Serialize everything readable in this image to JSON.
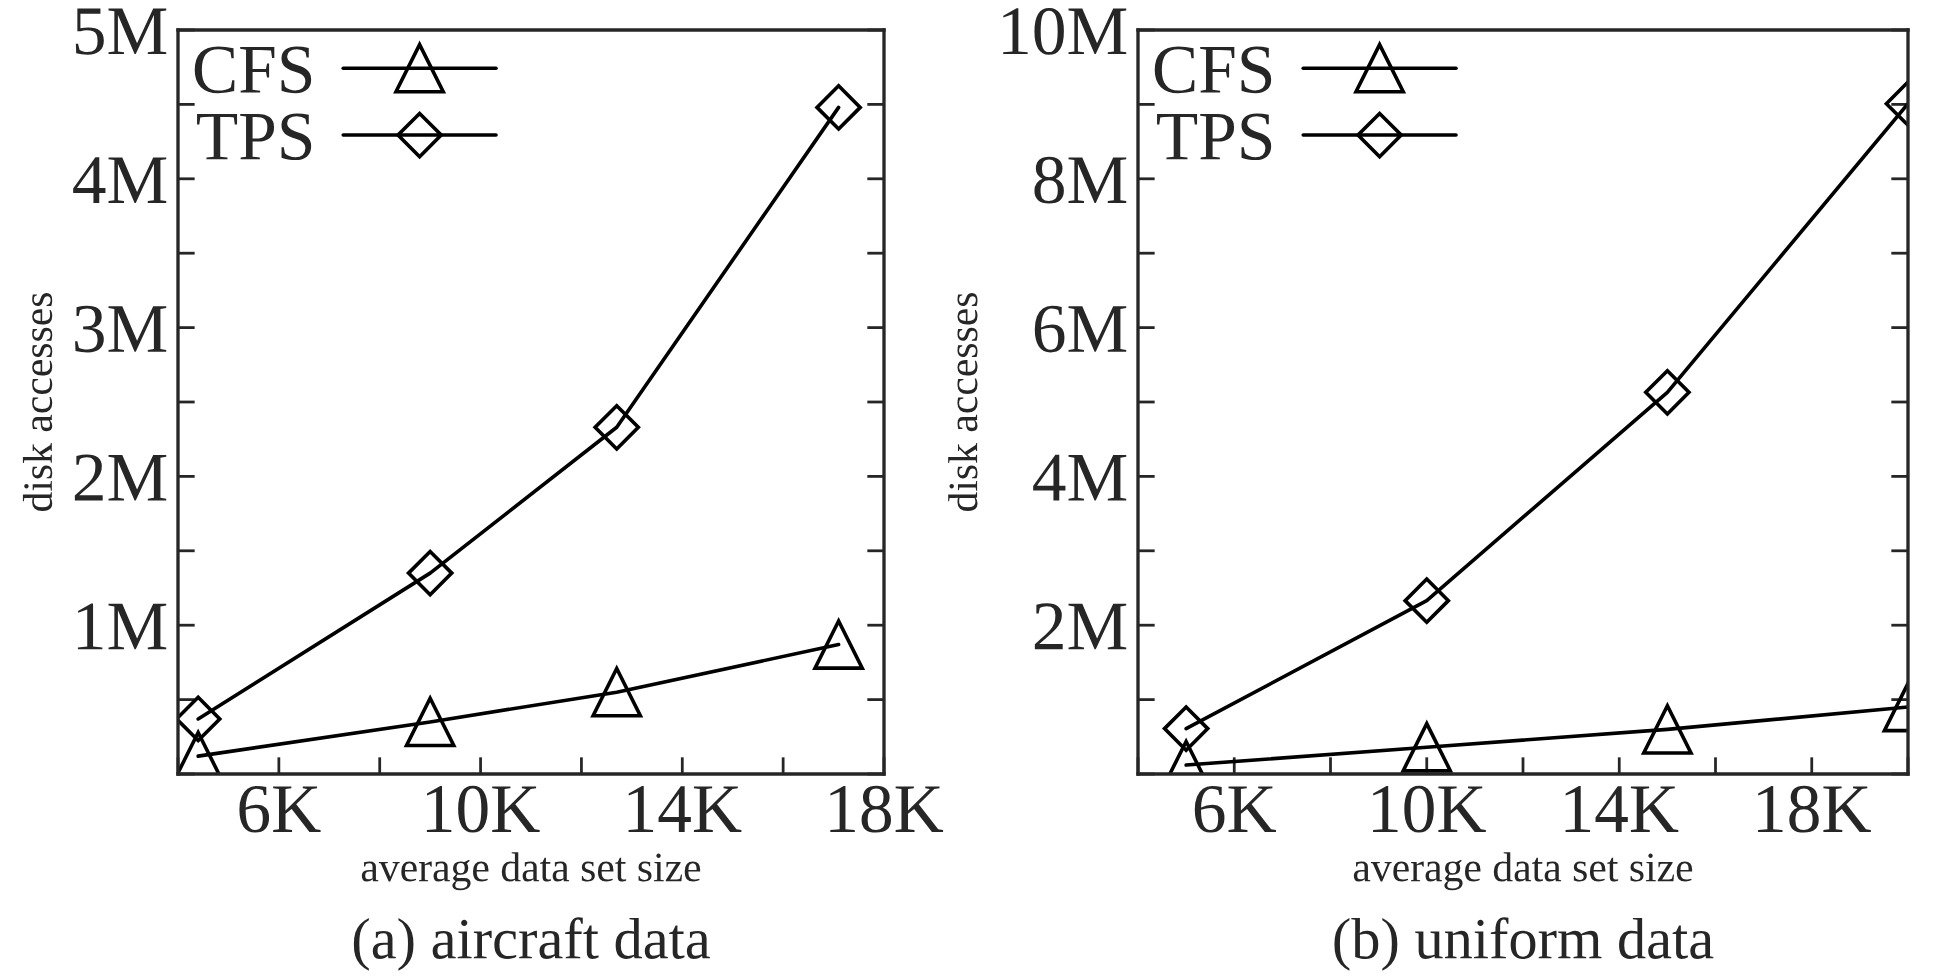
{
  "chart_data": [
    {
      "type": "line",
      "title": "(a) aircraft data",
      "xlabel": "average data set size",
      "ylabel": "disk accesses",
      "xlim": [
        4000,
        18000
      ],
      "xticks": [
        {
          "value": 4000,
          "label": null
        },
        {
          "value": 6000,
          "label": "6K"
        },
        {
          "value": 8000,
          "label": null
        },
        {
          "value": 10000,
          "label": "10K"
        },
        {
          "value": 12000,
          "label": null
        },
        {
          "value": 14000,
          "label": "14K"
        },
        {
          "value": 16000,
          "label": null
        },
        {
          "value": 18000,
          "label": "18K"
        }
      ],
      "ylim": [
        0,
        5000000
      ],
      "yticks": [
        {
          "value": 0,
          "label": null
        },
        {
          "value": 500000,
          "label": null
        },
        {
          "value": 1000000,
          "label": "1M"
        },
        {
          "value": 1500000,
          "label": null
        },
        {
          "value": 2000000,
          "label": "2M"
        },
        {
          "value": 2500000,
          "label": null
        },
        {
          "value": 3000000,
          "label": "3M"
        },
        {
          "value": 3500000,
          "label": null
        },
        {
          "value": 4000000,
          "label": "4M"
        },
        {
          "value": 4500000,
          "label": null
        },
        {
          "value": 5000000,
          "label": "5M"
        }
      ],
      "legend": "top left",
      "grid": false,
      "series": [
        {
          "name": "CFS",
          "color": "#000000",
          "marker": "triangle",
          "x": [
            4400,
            9000,
            12700,
            17100
          ],
          "values": [
            120000,
            350000,
            550000,
            870000
          ]
        },
        {
          "name": "TPS",
          "color": "#000000",
          "marker": "diamond",
          "x": [
            4400,
            9000,
            12700,
            17100
          ],
          "values": [
            370000,
            1350000,
            2330000,
            4480000
          ]
        }
      ]
    },
    {
      "type": "line",
      "title": "(b) uniform data",
      "xlabel": "average data set size",
      "ylabel": "disk accesses",
      "xlim": [
        4000,
        20000
      ],
      "xticks": [
        {
          "value": 4000,
          "label": null
        },
        {
          "value": 6000,
          "label": "6K"
        },
        {
          "value": 8000,
          "label": null
        },
        {
          "value": 10000,
          "label": "10K"
        },
        {
          "value": 12000,
          "label": null
        },
        {
          "value": 14000,
          "label": "14K"
        },
        {
          "value": 16000,
          "label": null
        },
        {
          "value": 18000,
          "label": "18K"
        },
        {
          "value": 20000,
          "label": null
        }
      ],
      "ylim": [
        0,
        10000000
      ],
      "yticks": [
        {
          "value": 0,
          "label": null
        },
        {
          "value": 1000000,
          "label": null
        },
        {
          "value": 2000000,
          "label": "2M"
        },
        {
          "value": 3000000,
          "label": null
        },
        {
          "value": 4000000,
          "label": "4M"
        },
        {
          "value": 5000000,
          "label": null
        },
        {
          "value": 6000000,
          "label": "6M"
        },
        {
          "value": 7000000,
          "label": null
        },
        {
          "value": 8000000,
          "label": "8M"
        },
        {
          "value": 9000000,
          "label": null
        },
        {
          "value": 10000000,
          "label": "10M"
        }
      ],
      "legend": "top left",
      "grid": false,
      "series": [
        {
          "name": "CFS",
          "color": "#000000",
          "marker": "triangle",
          "x": [
            5000,
            10000,
            15000,
            20000
          ],
          "values": [
            120000,
            360000,
            600000,
            900000
          ]
        },
        {
          "name": "TPS",
          "color": "#000000",
          "marker": "diamond",
          "x": [
            5000,
            10000,
            15000,
            20000
          ],
          "values": [
            610000,
            2330000,
            5130000,
            9010000
          ]
        }
      ]
    }
  ]
}
